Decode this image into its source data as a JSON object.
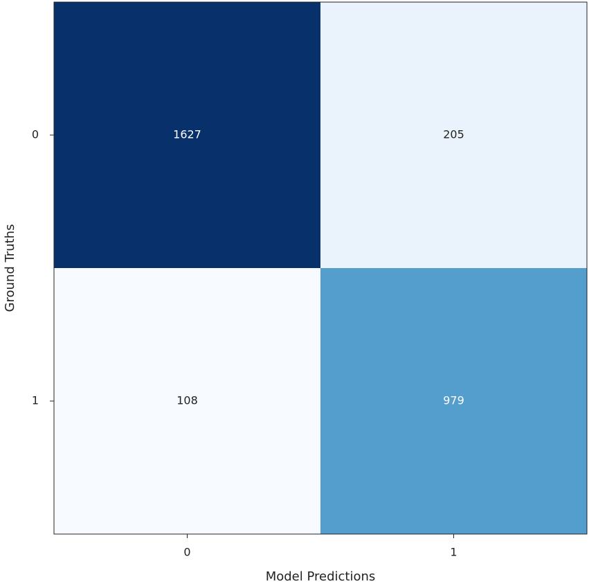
{
  "chart_data": {
    "type": "heatmap",
    "x_categories": [
      "0",
      "1"
    ],
    "y_categories": [
      "0",
      "1"
    ],
    "values": [
      [
        1627,
        205
      ],
      [
        108,
        979
      ]
    ],
    "xlabel": "Model Predictions",
    "ylabel": "Ground Truths",
    "colormap": "Blues"
  }
}
